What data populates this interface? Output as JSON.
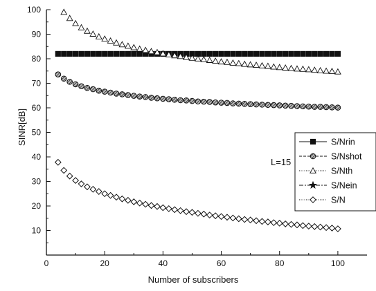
{
  "chart_data": {
    "type": "scatter",
    "title": "",
    "xlabel": "Number of subscribers",
    "ylabel": "SINR[dB]",
    "xlim": [
      0,
      110
    ],
    "ylim": [
      0,
      100
    ],
    "x_ticks": [
      0,
      20,
      40,
      60,
      80,
      100
    ],
    "y_ticks": [
      10,
      20,
      30,
      40,
      50,
      60,
      70,
      80,
      90,
      100
    ],
    "grid": false,
    "legend_position": "right",
    "annotation": "L=15",
    "x": [
      4,
      6,
      8,
      10,
      12,
      14,
      16,
      18,
      20,
      22,
      24,
      26,
      28,
      30,
      32,
      34,
      36,
      38,
      40,
      42,
      44,
      46,
      48,
      50,
      52,
      54,
      56,
      58,
      60,
      62,
      64,
      66,
      68,
      70,
      72,
      74,
      76,
      78,
      80,
      82,
      84,
      86,
      88,
      90,
      92,
      94,
      96,
      98,
      100
    ],
    "series": [
      {
        "name": "S/Nrin",
        "marker": "filled-square",
        "values": [
          82,
          82,
          82,
          82,
          82,
          82,
          82,
          82,
          82,
          82,
          82,
          82,
          82,
          82,
          82,
          82,
          82,
          82,
          82,
          82,
          82,
          82,
          82,
          82,
          82,
          82,
          82,
          82,
          82,
          82,
          82,
          82,
          82,
          82,
          82,
          82,
          82,
          82,
          82,
          82,
          82,
          82,
          82,
          82,
          82,
          82,
          82,
          82,
          82
        ]
      },
      {
        "name": "S/Nshot",
        "marker": "hatched-circle",
        "values": [
          73.6,
          71.9,
          70.6,
          69.6,
          68.8,
          68.1,
          67.6,
          67.0,
          66.6,
          66.2,
          65.8,
          65.5,
          65.2,
          64.9,
          64.6,
          64.4,
          64.1,
          63.9,
          63.7,
          63.5,
          63.3,
          63.1,
          63.0,
          62.8,
          62.6,
          62.5,
          62.4,
          62.2,
          62.1,
          62.0,
          61.8,
          61.7,
          61.6,
          61.5,
          61.4,
          61.3,
          61.2,
          61.1,
          61.0,
          60.9,
          60.8,
          60.7,
          60.6,
          60.5,
          60.4,
          60.4,
          60.3,
          60.2,
          60.1
        ]
      },
      {
        "name": "S/Nth",
        "marker": "open-triangle",
        "values": [
          null,
          99.0,
          96.5,
          94.4,
          92.7,
          91.3,
          90.1,
          89.0,
          88.1,
          87.3,
          86.5,
          85.8,
          85.2,
          84.6,
          84.0,
          83.5,
          83.0,
          82.6,
          82.1,
          81.7,
          81.3,
          81.0,
          80.6,
          80.3,
          80.0,
          79.7,
          79.4,
          79.1,
          78.8,
          78.6,
          78.3,
          78.1,
          77.8,
          77.6,
          77.4,
          77.2,
          77.0,
          76.7,
          76.5,
          76.3,
          76.1,
          75.9,
          75.8,
          75.6,
          75.4,
          75.2,
          75.0,
          74.9,
          74.7
        ]
      },
      {
        "name": "S/Nein",
        "marker": "filled-star",
        "values": []
      },
      {
        "name": "S/N",
        "marker": "open-diamond",
        "values": [
          37.8,
          34.5,
          32.2,
          30.4,
          29.0,
          27.8,
          26.8,
          25.9,
          25.0,
          24.3,
          23.6,
          22.9,
          22.3,
          21.7,
          21.2,
          20.7,
          20.2,
          19.8,
          19.3,
          18.9,
          18.5,
          18.1,
          17.7,
          17.4,
          17.0,
          16.7,
          16.3,
          16.0,
          15.7,
          15.4,
          15.1,
          14.8,
          14.5,
          14.3,
          14.0,
          13.7,
          13.5,
          13.2,
          13.0,
          12.7,
          12.5,
          12.3,
          12.0,
          11.8,
          11.6,
          11.4,
          11.2,
          11.0,
          10.7
        ]
      }
    ]
  }
}
